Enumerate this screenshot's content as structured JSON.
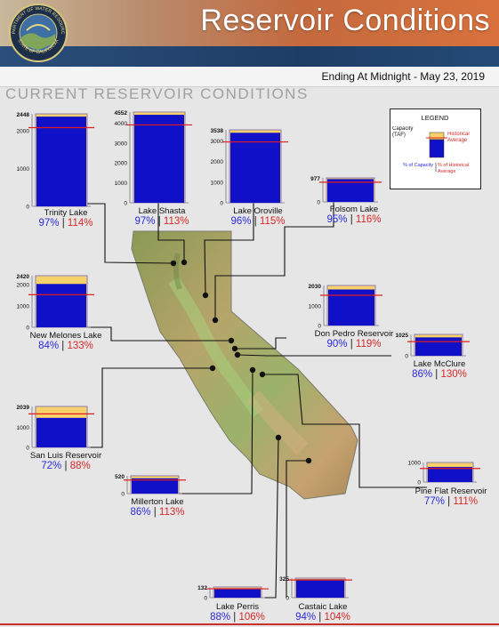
{
  "header": {
    "title": "Reservoir Conditions",
    "date_line": "Ending At Midnight - May 23, 2019",
    "section_heading": "CURRENT RESERVOIR CONDITIONS",
    "seal_text_top": "DEPARTMENT OF WATER RESOURCES",
    "seal_text_bottom": "STATE OF CALIFORNIA"
  },
  "legend": {
    "title": "LEGEND",
    "capacity_label": "Capacity (TAF)",
    "historical_label": "Historical Average",
    "pct_capacity_label": "% of Capacity",
    "pct_historical_label": "% of Historical Average"
  },
  "colors": {
    "bar_fill": "#1010c8",
    "capacity_fill": "#f7d26a",
    "historical_line": "#e21d1d",
    "capacity_text": "#2a2adb",
    "historical_text": "#d62828"
  },
  "chart_data": {
    "type": "bar",
    "units": "TAF",
    "reservoirs": [
      {
        "name": "Trinity Lake",
        "capacity": 2448,
        "pct_capacity": 97,
        "pct_historical": 114,
        "ticks": [
          2000,
          1000,
          0
        ],
        "cap_label": "2448",
        "pct_text": "97%",
        "sep": "|",
        "hist_text": "114%"
      },
      {
        "name": "Lake Shasta",
        "capacity": 4552,
        "pct_capacity": 97,
        "pct_historical": 113,
        "ticks": [
          4000,
          3000,
          2000,
          1000,
          0
        ],
        "cap_label": "4552",
        "pct_text": "97%",
        "sep": "|",
        "hist_text": "113%"
      },
      {
        "name": "Lake Oroville",
        "capacity": 3538,
        "pct_capacity": 96,
        "pct_historical": 115,
        "ticks": [
          3000,
          2000,
          1000,
          0
        ],
        "cap_label": "3538",
        "pct_text": "96%",
        "sep": "|",
        "hist_text": "115%"
      },
      {
        "name": "Folsom Lake",
        "capacity": 977,
        "pct_capacity": 95,
        "pct_historical": 116,
        "ticks": [
          0
        ],
        "cap_label": "977",
        "pct_text": "95%",
        "sep": "|",
        "hist_text": "116%"
      },
      {
        "name": "New Melones Lake",
        "capacity": 2420,
        "pct_capacity": 84,
        "pct_historical": 133,
        "ticks": [
          2000,
          1000,
          0
        ],
        "cap_label": "2420",
        "pct_text": "84%",
        "sep": "|",
        "hist_text": "133%"
      },
      {
        "name": "Don Pedro Reservoir",
        "capacity": 2030,
        "pct_capacity": 90,
        "pct_historical": 119,
        "ticks": [
          1000,
          0
        ],
        "cap_label": "2030",
        "pct_text": "90%",
        "sep": "|",
        "hist_text": "119%"
      },
      {
        "name": "Lake McClure",
        "capacity": 1025,
        "pct_capacity": 86,
        "pct_historical": 130,
        "ticks": [
          0
        ],
        "cap_label": "1025",
        "pct_text": "86%",
        "sep": "|",
        "hist_text": "130%"
      },
      {
        "name": "San Luis Reservoir",
        "capacity": 2039,
        "pct_capacity": 72,
        "pct_historical": 88,
        "ticks": [
          1000,
          0
        ],
        "cap_label": "2039",
        "pct_text": "72%",
        "sep": "|",
        "hist_text": "88%"
      },
      {
        "name": "Millerton Lake",
        "capacity": 520,
        "pct_capacity": 86,
        "pct_historical": 113,
        "ticks": [
          0
        ],
        "cap_label": "520",
        "pct_text": "86%",
        "sep": "|",
        "hist_text": "113%"
      },
      {
        "name": "Pine Flat Reservoir",
        "capacity": 1000,
        "pct_capacity": 77,
        "pct_historical": 111,
        "ticks": [
          1000,
          0
        ],
        "cap_label": "",
        "pct_text": "77%",
        "sep": "|",
        "hist_text": "111%"
      },
      {
        "name": "Lake Perris",
        "capacity": 132,
        "pct_capacity": 88,
        "pct_historical": 106,
        "ticks": [
          0
        ],
        "cap_label": "132",
        "pct_text": "88%",
        "sep": "|",
        "hist_text": "106%"
      },
      {
        "name": "Castaic Lake",
        "capacity": 325,
        "pct_capacity": 94,
        "pct_historical": 104,
        "ticks": [
          0
        ],
        "cap_label": "325",
        "pct_text": "94%",
        "sep": "|",
        "hist_text": "104%"
      }
    ]
  }
}
